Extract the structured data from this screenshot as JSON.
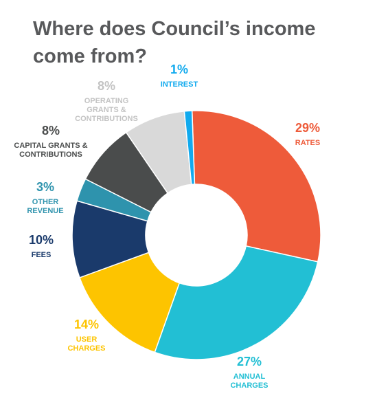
{
  "chart_data": {
    "type": "pie",
    "donut": true,
    "title": "Where does Council’s income come from?",
    "legend": "none",
    "categories": [
      "RATES",
      "ANNUAL CHARGES",
      "USER CHARGES",
      "FEES",
      "OTHER REVENUE",
      "CAPITAL GRANTS & CONTRIBUTIONS",
      "OPERATING GRANTS & CONTRIBUTIONS",
      "INTEREST"
    ],
    "slices": [
      {
        "label": "RATES",
        "label_lines": [
          "RATES"
        ],
        "pct_label": "29%",
        "value": 29,
        "color": "#ee5b3a"
      },
      {
        "label": "ANNUAL CHARGES",
        "label_lines": [
          "ANNUAL",
          "CHARGES"
        ],
        "pct_label": "27%",
        "value": 27,
        "color": "#22bfd4"
      },
      {
        "label": "USER CHARGES",
        "label_lines": [
          "USER",
          "CHARGES"
        ],
        "pct_label": "14%",
        "value": 14,
        "color": "#fdc400"
      },
      {
        "label": "FEES",
        "label_lines": [
          "FEES"
        ],
        "pct_label": "10%",
        "value": 10,
        "color": "#1a3a6b"
      },
      {
        "label": "OTHER REVENUE",
        "label_lines": [
          "OTHER",
          "REVENUE"
        ],
        "pct_label": "3%",
        "value": 3,
        "color": "#2e93ad"
      },
      {
        "label": "CAPITAL GRANTS & CONTRIBUTIONS",
        "label_lines": [
          "CAPITAL GRANTS &",
          "CONTRIBUTIONS"
        ],
        "pct_label": "8%",
        "value": 8,
        "color": "#4a4c4c"
      },
      {
        "label": "OPERATING GRANTS & CONTRIBUTIONS",
        "label_lines": [
          "OPERATING",
          "GRANTS &",
          "CONTRIBUTIONS"
        ],
        "pct_label": "8%",
        "value": 8,
        "color": "#d9d9d9"
      },
      {
        "label": "INTEREST",
        "label_lines": [
          "INTEREST"
        ],
        "pct_label": "1%",
        "value": 1,
        "color": "#11aaee"
      }
    ]
  }
}
